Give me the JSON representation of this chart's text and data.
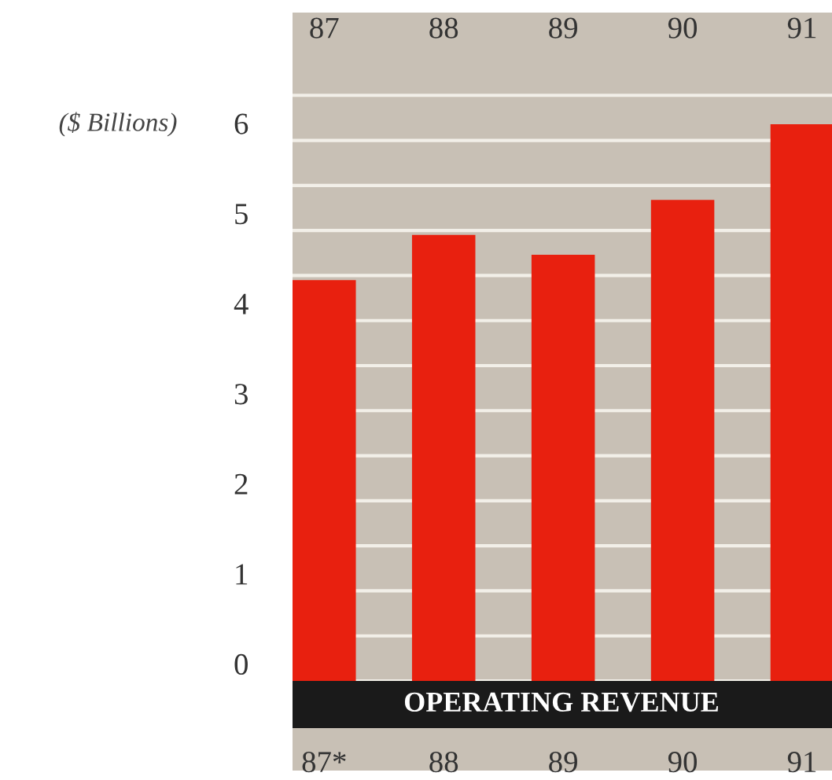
{
  "chart_data": {
    "type": "bar",
    "title": "OPERATING REVENUE",
    "ylabel": "($ Billions)",
    "categories": [
      "87*",
      "88",
      "89",
      "90",
      "91"
    ],
    "annotations": [
      "87",
      "88",
      "89",
      "90",
      "91"
    ],
    "values": [
      4.45,
      4.95,
      4.73,
      5.34,
      6.18
    ],
    "color": "#e8200f",
    "ylim": [
      0,
      7
    ],
    "yticks": [
      0,
      {
        "value": 0.5,
        "label": null
      },
      1,
      {
        "value": 1.5,
        "label": null
      },
      2,
      {
        "value": 2.5,
        "label": null
      },
      3,
      {
        "value": 3.5,
        "label": null
      },
      4,
      {
        "value": 4.5,
        "label": null
      },
      5,
      {
        "value": 5.5,
        "label": null
      },
      6,
      {
        "value": 6.5,
        "label": null
      }
    ],
    "grid": "y"
  }
}
